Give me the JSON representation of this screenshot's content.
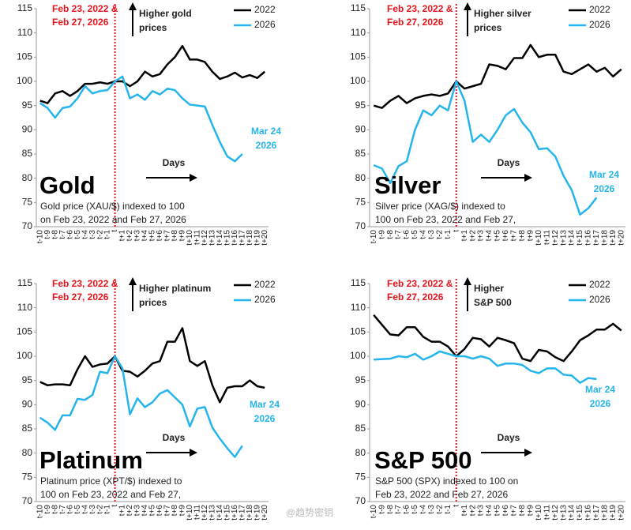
{
  "chart_data": [
    {
      "type": "line",
      "title": "Gold",
      "description": [
        "Gold price (XAU/$) indexed to 100",
        "on Feb 23, 2022 and Feb 27, 2026"
      ],
      "event_label": [
        "Feb 23, 2022 &",
        "Feb 27, 2026"
      ],
      "direction_label": [
        "Higher gold",
        "prices"
      ],
      "annotation": [
        "Mar 24",
        "2026"
      ],
      "x_label": "Days",
      "categories": [
        "t-10",
        "t-9",
        "t-8",
        "t-7",
        "t-6",
        "t-5",
        "t-4",
        "t-3",
        "t-2",
        "t-1",
        "t",
        "t+1",
        "t+2",
        "t+3",
        "t+4",
        "t+5",
        "t+6",
        "t+7",
        "t+8",
        "t+9",
        "t+10",
        "t+11",
        "t+12",
        "t+13",
        "t+14",
        "t+15",
        "t+16",
        "t+17",
        "t+18",
        "t+19",
        "t+20"
      ],
      "ylim": [
        70,
        115
      ],
      "yticks": [
        70,
        75,
        80,
        85,
        90,
        95,
        100,
        105,
        110,
        115
      ],
      "series": [
        {
          "name": "2022",
          "color": "#000000",
          "values": [
            96,
            95.5,
            97.5,
            98,
            97,
            98,
            99.5,
            99.5,
            99.8,
            99.5,
            100,
            100,
            99,
            100,
            102,
            101,
            101.5,
            103.5,
            105,
            107.3,
            104.5,
            104.5,
            104,
            102,
            100.5,
            101,
            101.8,
            100.8,
            101.3,
            100.7,
            102
          ]
        },
        {
          "name": "2026",
          "color": "#25b5ec",
          "values": [
            95.5,
            94.5,
            92.5,
            94.5,
            94.8,
            96.5,
            99,
            97.5,
            98,
            98.2,
            100,
            101,
            96.5,
            97.3,
            96.2,
            98,
            97.3,
            98.5,
            98.2,
            96.5,
            95.2,
            95,
            94.8,
            91,
            87.5,
            84.5,
            83.5,
            85,
            null,
            null,
            null
          ]
        }
      ]
    },
    {
      "type": "line",
      "title": "Silver",
      "description": [
        "Silver price (XAG/$) indexed to",
        "100 on Feb 23, 2022 and Feb 27,"
      ],
      "event_label": [
        "Feb 23, 2022 &",
        "Feb 27, 2026"
      ],
      "direction_label": [
        "Higher silver",
        "prices"
      ],
      "annotation": [
        "Mar 24",
        "2026"
      ],
      "x_label": "Days",
      "categories": [
        "t-10",
        "t-9",
        "t-8",
        "t-7",
        "t-6",
        "t-5",
        "t-4",
        "t-3",
        "t-2",
        "t-1",
        "t",
        "t+1",
        "t+2",
        "t+3",
        "t+4",
        "t+5",
        "t+6",
        "t+7",
        "t+8",
        "t+9",
        "t+10",
        "t+11",
        "t+12",
        "t+13",
        "t+14",
        "t+15",
        "t+16",
        "t+17",
        "t+18",
        "t+19",
        "t+20"
      ],
      "ylim": [
        70,
        115
      ],
      "yticks": [
        70,
        75,
        80,
        85,
        90,
        95,
        100,
        105,
        110,
        115
      ],
      "series": [
        {
          "name": "2022",
          "color": "#000000",
          "values": [
            95,
            94.5,
            96,
            97,
            95.5,
            96.5,
            97,
            97.3,
            97,
            97.5,
            100,
            98.5,
            99,
            99.5,
            103.5,
            103.2,
            102.5,
            104.8,
            104.8,
            107.5,
            105,
            105.5,
            105.5,
            102,
            101.5,
            102.5,
            103.5,
            102,
            102.8,
            101,
            102.5
          ]
        },
        {
          "name": "2026",
          "color": "#25b5ec",
          "values": [
            82.7,
            82,
            79,
            82.5,
            83.5,
            90,
            94,
            93,
            95,
            94,
            100,
            96,
            87.5,
            89,
            87.5,
            90,
            93,
            94.3,
            91.5,
            89.5,
            86,
            86.2,
            84.5,
            80.5,
            77.5,
            72.5,
            73.8,
            76,
            null,
            null,
            null
          ]
        }
      ]
    },
    {
      "type": "line",
      "title": "Platinum",
      "description": [
        "Platinum price (XPT/$) indexed to",
        "100 on Feb 23, 2022 and Feb 27,"
      ],
      "event_label": [
        "Feb 23, 2022 &",
        "Feb 27, 2026"
      ],
      "direction_label": [
        "Higher platinum",
        "prices"
      ],
      "annotation": [
        "Mar 24",
        "2026"
      ],
      "x_label": "Days",
      "categories": [
        "t-10",
        "t-9",
        "t-8",
        "t-7",
        "t-6",
        "t-5",
        "t-4",
        "t-3",
        "t-2",
        "t-1",
        "t",
        "t+1",
        "t+2",
        "t+3",
        "t+4",
        "t+5",
        "t+6",
        "t+7",
        "t+8",
        "t+9",
        "t+10",
        "t+11",
        "t+12",
        "t+13",
        "t+14",
        "t+15",
        "t+16",
        "t+17",
        "t+18",
        "t+19",
        "t+20"
      ],
      "ylim": [
        70,
        115
      ],
      "yticks": [
        70,
        75,
        80,
        85,
        90,
        95,
        100,
        105,
        110,
        115
      ],
      "series": [
        {
          "name": "2022",
          "color": "#000000",
          "values": [
            94.7,
            94,
            94.2,
            94.2,
            94,
            97.3,
            100,
            97.8,
            98.3,
            98.5,
            100,
            97,
            96.8,
            95.8,
            97,
            98.5,
            99,
            103,
            103,
            105.8,
            99,
            98,
            99,
            94,
            90.5,
            93.5,
            93.8,
            93.8,
            95,
            93.8,
            93.5
          ]
        },
        {
          "name": "2026",
          "color": "#25b5ec",
          "values": [
            87.3,
            86.3,
            84.8,
            87.8,
            87.8,
            91.2,
            91,
            92,
            96.8,
            96.5,
            100,
            97.5,
            88,
            91.3,
            89.5,
            90.5,
            92.3,
            93,
            91.5,
            90,
            85.5,
            89.2,
            89.5,
            85.3,
            83,
            81,
            79.2,
            81.5,
            null,
            null,
            null
          ]
        }
      ]
    },
    {
      "type": "line",
      "title": "S&P 500",
      "description": [
        "S&P 500 (SPX) indexed to 100 on",
        "Feb 23, 2022 and Feb 27, 2026"
      ],
      "event_label": [
        "Feb 23, 2022 &",
        "Feb 27, 2026"
      ],
      "direction_label": [
        "Higher",
        "S&P 500"
      ],
      "annotation": [
        "Mar 24",
        "2026"
      ],
      "x_label": "Days",
      "categories": [
        "t-10",
        "t-9",
        "t-8",
        "t-7",
        "t-6",
        "t-5",
        "t-4",
        "t-3",
        "t-2",
        "t-1",
        "t",
        "t+1",
        "t+2",
        "t+3",
        "t+4",
        "t+5",
        "t+6",
        "t+7",
        "t+8",
        "t+9",
        "t+10",
        "t+11",
        "t+12",
        "t+13",
        "t+14",
        "t+15",
        "t+16",
        "t+17",
        "t+18",
        "t+19",
        "t+20"
      ],
      "ylim": [
        70,
        115
      ],
      "yticks": [
        70,
        75,
        80,
        85,
        90,
        95,
        100,
        105,
        110,
        115
      ],
      "series": [
        {
          "name": "2022",
          "color": "#000000",
          "values": [
            108.5,
            106.5,
            104.5,
            104.3,
            106,
            106,
            104,
            103,
            103,
            102,
            100,
            101.5,
            103.8,
            103.5,
            102,
            103.8,
            103.3,
            102.7,
            99.5,
            99,
            101.3,
            101,
            99.8,
            99,
            101,
            103.3,
            104.3,
            105.5,
            105.5,
            106.7,
            105.3
          ]
        },
        {
          "name": "2026",
          "color": "#25b5ec",
          "values": [
            99.3,
            99.4,
            99.5,
            100,
            99.8,
            100.5,
            99.3,
            100,
            101,
            100.5,
            100,
            100,
            99.5,
            100,
            99.5,
            98,
            98.5,
            98.5,
            98.2,
            97,
            96.5,
            97.5,
            97.5,
            96.2,
            96,
            94.5,
            95.5,
            95.3,
            null,
            null,
            null
          ]
        }
      ]
    }
  ],
  "watermark": "@趋势密钥"
}
